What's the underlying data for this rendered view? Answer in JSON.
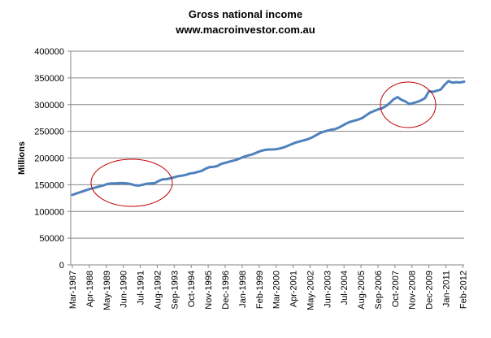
{
  "chart_data": {
    "type": "line",
    "title": "Gross national income",
    "subtitle": "www.macroinvestor.com.au",
    "ylabel": "Millions",
    "xlabel": "",
    "ylim": [
      0,
      400000
    ],
    "yticks": [
      0,
      50000,
      100000,
      150000,
      200000,
      250000,
      300000,
      350000,
      400000
    ],
    "ytick_labels": [
      "0",
      "50000",
      "100000",
      "150000",
      "200000",
      "250000",
      "300000",
      "350000",
      "400000"
    ],
    "xtick_labels": [
      "Mar-1987",
      "Apr-1988",
      "May-1989",
      "Jun-1990",
      "Jul-1991",
      "Aug-1992",
      "Sep-1993",
      "Oct-1994",
      "Nov-1995",
      "Dec-1996",
      "Jan-1998",
      "Feb-1999",
      "Mar-2000",
      "Apr-2001",
      "May-2002",
      "Jun-2003",
      "Jul-2004",
      "Aug-2005",
      "Sep-2006",
      "Oct-2007",
      "Nov-2008",
      "Dec-2009",
      "Jan-2011",
      "Feb-2012"
    ],
    "line_color": "#4f81bd",
    "annotation_color": "#c00000",
    "grid": "horizontal",
    "series": [
      {
        "x": [
          "Mar-1987",
          "Jun-1987",
          "Sep-1987",
          "Dec-1987",
          "Mar-1988",
          "Jun-1988",
          "Sep-1988",
          "Dec-1988",
          "Mar-1989",
          "Jun-1989",
          "Sep-1989",
          "Dec-1989",
          "Mar-1990",
          "Jun-1990",
          "Sep-1990",
          "Dec-1990",
          "Mar-1991",
          "Jun-1991",
          "Sep-1991",
          "Dec-1991",
          "Mar-1992",
          "Jun-1992",
          "Sep-1992",
          "Dec-1992",
          "Mar-1993",
          "Jun-1993",
          "Sep-1993",
          "Dec-1993",
          "Mar-1994",
          "Jun-1994",
          "Sep-1994",
          "Dec-1994",
          "Mar-1995",
          "Jun-1995",
          "Sep-1995",
          "Dec-1995",
          "Mar-1996",
          "Jun-1996",
          "Sep-1996",
          "Dec-1996",
          "Mar-1997",
          "Jun-1997",
          "Sep-1997",
          "Dec-1997",
          "Mar-1998",
          "Jun-1998",
          "Sep-1998",
          "Dec-1998",
          "Mar-1999",
          "Jun-1999",
          "Sep-1999",
          "Dec-1999",
          "Mar-2000",
          "Jun-2000",
          "Sep-2000",
          "Dec-2000",
          "Mar-2001",
          "Jun-2001",
          "Sep-2001",
          "Dec-2001",
          "Mar-2002",
          "Jun-2002",
          "Sep-2002",
          "Dec-2002",
          "Mar-2003",
          "Jun-2003",
          "Sep-2003",
          "Dec-2003",
          "Mar-2004",
          "Jun-2004",
          "Sep-2004",
          "Dec-2004",
          "Mar-2005",
          "Jun-2005",
          "Sep-2005",
          "Dec-2005",
          "Mar-2006",
          "Jun-2006",
          "Sep-2006",
          "Dec-2006",
          "Mar-2007",
          "Jun-2007",
          "Sep-2007",
          "Dec-2007",
          "Mar-2008",
          "Jun-2008",
          "Sep-2008",
          "Dec-2008",
          "Mar-2009",
          "Jun-2009",
          "Sep-2009",
          "Dec-2009",
          "Mar-2010",
          "Jun-2010",
          "Sep-2010",
          "Dec-2010",
          "Mar-2011",
          "Jun-2011",
          "Sep-2011",
          "Dec-2011",
          "Mar-2012"
        ],
        "values": [
          131000,
          133500,
          136000,
          138500,
          141000,
          143000,
          145000,
          147000,
          149000,
          151500,
          152500,
          152500,
          153000,
          153000,
          152500,
          151000,
          149000,
          148500,
          150000,
          152000,
          152500,
          153000,
          157000,
          160000,
          160500,
          162000,
          164000,
          166000,
          167000,
          168500,
          171000,
          172000,
          174000,
          176000,
          180000,
          183000,
          183500,
          185000,
          189000,
          191000,
          193000,
          195000,
          197000,
          200000,
          203000,
          205000,
          207000,
          210000,
          213000,
          215000,
          216000,
          216000,
          216500,
          218000,
          220000,
          223000,
          226000,
          229000,
          231000,
          233000,
          235000,
          238000,
          242000,
          246000,
          249000,
          251000,
          253000,
          254000,
          257000,
          261000,
          265000,
          268000,
          270000,
          272000,
          275000,
          280000,
          285000,
          288000,
          291000,
          293000,
          297000,
          303000,
          310000,
          314000,
          309000,
          306000,
          301000,
          303000,
          305000,
          308000,
          312000,
          325000,
          324000,
          326000,
          328000,
          337000,
          344000,
          341000,
          342000,
          341500,
          343000
        ]
      }
    ]
  }
}
